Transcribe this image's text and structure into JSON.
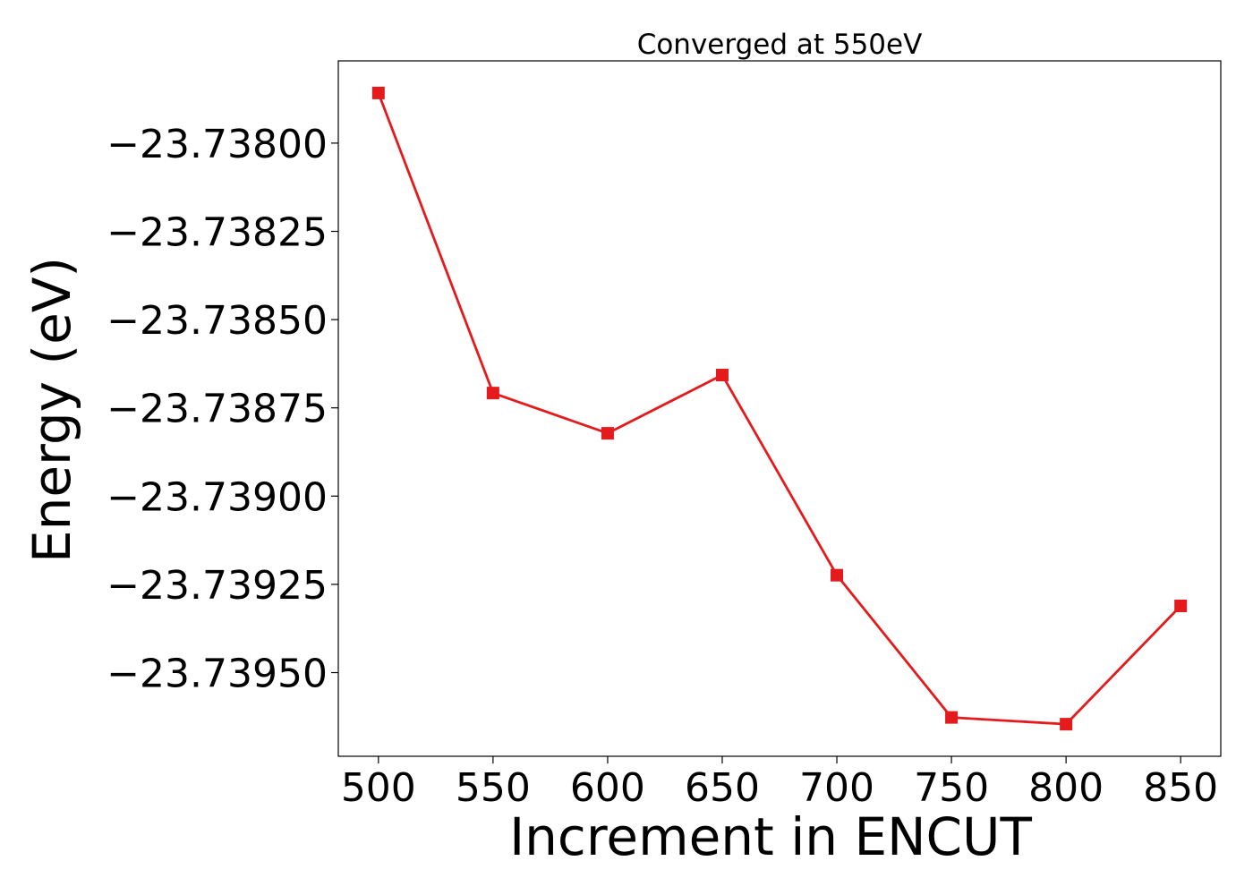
{
  "chart_data": {
    "type": "line",
    "title": "Converged at 550eV",
    "xlabel": "Increment in ENCUT",
    "ylabel": "Energy (eV)",
    "x": [
      500,
      550,
      600,
      650,
      700,
      750,
      800,
      850
    ],
    "series": [
      {
        "values": [
          -23.737858,
          -23.738708,
          -23.738822,
          -23.738657,
          -23.739224,
          -23.739627,
          -23.739646,
          -23.739311
        ],
        "color": "#e41a1c",
        "marker": "square"
      }
    ],
    "xticks": [
      500,
      550,
      600,
      650,
      700,
      750,
      800,
      850
    ],
    "xtick_labels": [
      "500",
      "550",
      "600",
      "650",
      "700",
      "750",
      "800",
      "850"
    ],
    "yticks": [
      -23.738,
      -23.73825,
      -23.7385,
      -23.73875,
      -23.739,
      -23.73925,
      -23.7395
    ],
    "ytick_labels": [
      "−23.73800",
      "−23.73825",
      "−23.73850",
      "−23.73875",
      "−23.73900",
      "−23.73925",
      "−23.73950"
    ],
    "xlim": [
      482.5,
      867.5
    ],
    "ylim": [
      -23.739737,
      -23.737767
    ],
    "grid": false,
    "legend": "none"
  }
}
